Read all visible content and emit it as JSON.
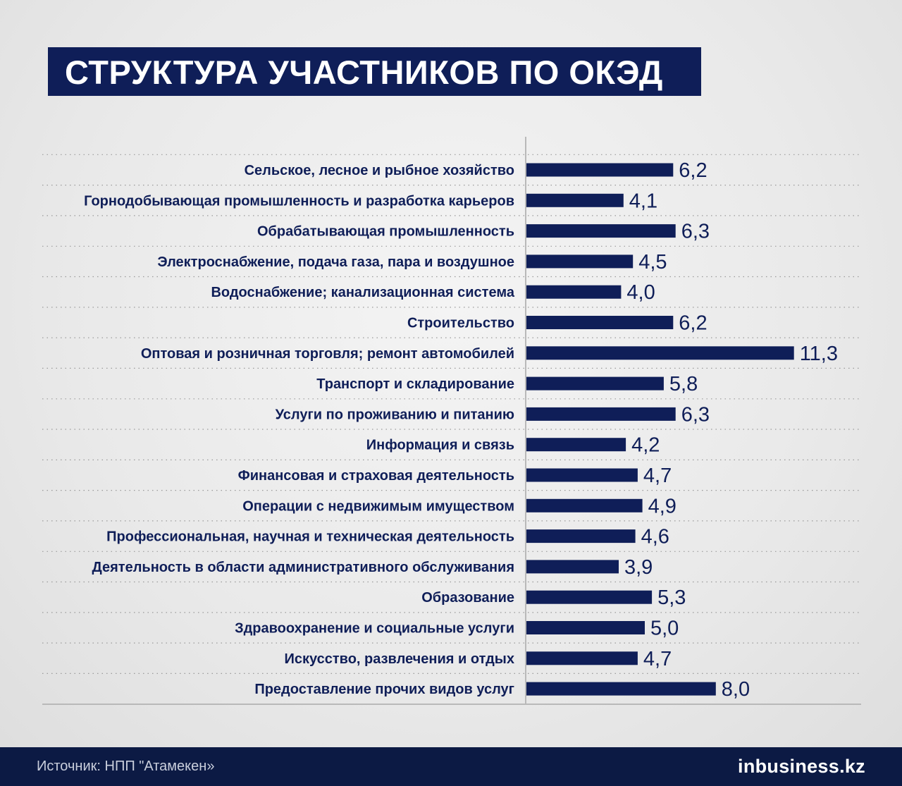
{
  "title": "СТРУКТУРА УЧАСТНИКОВ ПО ОКЭД",
  "footer": {
    "source": "Источник: НПП \"Атамекен»",
    "logo": "inbusiness.kz"
  },
  "colors": {
    "bar": "#0f1e58",
    "title_bg": "#0f1e58",
    "footer_bg": "#0c1a44",
    "text": "#0f1e58"
  },
  "chart_data": {
    "type": "bar",
    "orientation": "horizontal",
    "categories": [
      "Сельское, лесное и рыбное хозяйство",
      "Горнодобывающая промышленность и разработка карьеров",
      "Обрабатывающая промышленность",
      "Электроснабжение, подача газа, пара и воздушное",
      "Водоснабжение; канализационная система",
      "Строительство",
      "Оптовая и розничная торговля; ремонт автомобилей",
      "Транспорт и складирование",
      "Услуги по проживанию и питанию",
      "Информация и связь",
      "Финансовая и страховая деятельность",
      "Операции с недвижимым имуществом",
      "Профессиональная, научная и техническая деятельность",
      "Деятельность в области  административного обслуживания",
      "Образование",
      "Здравоохранение и социальные услуги",
      "Искусство, развлечения и отдых",
      "Предоставление прочих видов услуг"
    ],
    "values": [
      6.2,
      4.1,
      6.3,
      4.5,
      4.0,
      6.2,
      11.3,
      5.8,
      6.3,
      4.2,
      4.7,
      4.9,
      4.6,
      3.9,
      5.3,
      5.0,
      4.7,
      8.0
    ],
    "value_labels": [
      "6,2",
      "4,1",
      "6,3",
      "4,5",
      "4,0",
      "6,2",
      "11,3",
      "5,8",
      "6,3",
      "4,2",
      "4,7",
      "4,9",
      "4,6",
      "3,9",
      "5,3",
      "5,0",
      "4,7",
      "8,0"
    ],
    "title": "СТРУКТУРА УЧАСТНИКОВ ПО ОКЭД",
    "xlabel": "",
    "ylabel": "",
    "legend": "none",
    "grid": "dotted horizontal separators"
  }
}
